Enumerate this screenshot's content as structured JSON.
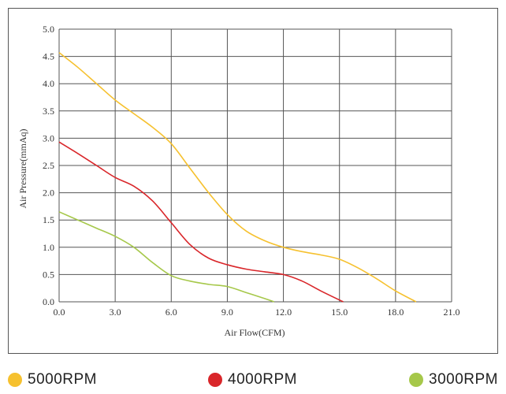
{
  "chart_data": {
    "type": "line",
    "title": "",
    "xlabel": "Air Flow(CFM)",
    "ylabel": "Air Pressure(mmAq)",
    "xlim": [
      0,
      21
    ],
    "ylim": [
      0,
      5
    ],
    "x_ticks": [
      "0.0",
      "3.0",
      "6.0",
      "9.0",
      "12.0",
      "15.0",
      "18.0",
      "21.0"
    ],
    "y_ticks": [
      "0.0",
      "0.5",
      "1.0",
      "1.5",
      "2.0",
      "2.5",
      "3.0",
      "3.5",
      "4.0",
      "4.5",
      "5.0"
    ],
    "grid": true,
    "legend_position": "bottom",
    "series": [
      {
        "name": "5000RPM",
        "color": "#F6C12F",
        "x": [
          0,
          1,
          2,
          3,
          4,
          5,
          6,
          7,
          8,
          9,
          10,
          11,
          12,
          13,
          14,
          15,
          16,
          17,
          18,
          19.1
        ],
        "y": [
          4.57,
          4.3,
          4.0,
          3.7,
          3.45,
          3.2,
          2.9,
          2.45,
          2.0,
          1.6,
          1.3,
          1.12,
          1.0,
          0.92,
          0.86,
          0.78,
          0.62,
          0.42,
          0.2,
          0.0
        ]
      },
      {
        "name": "4000RPM",
        "color": "#D9262A",
        "x": [
          0,
          1,
          2,
          3,
          4,
          5,
          6,
          7,
          8,
          9,
          10,
          11,
          12,
          13,
          14,
          15.2
        ],
        "y": [
          2.93,
          2.72,
          2.5,
          2.28,
          2.12,
          1.85,
          1.45,
          1.05,
          0.8,
          0.68,
          0.6,
          0.55,
          0.5,
          0.38,
          0.2,
          0.0
        ]
      },
      {
        "name": "3000RPM",
        "color": "#A6C84A",
        "x": [
          0,
          1,
          2,
          3,
          4,
          5,
          6,
          7,
          8,
          9,
          10,
          11,
          11.5
        ],
        "y": [
          1.65,
          1.5,
          1.35,
          1.2,
          1.0,
          0.72,
          0.48,
          0.38,
          0.32,
          0.28,
          0.17,
          0.06,
          0.0
        ]
      }
    ]
  }
}
